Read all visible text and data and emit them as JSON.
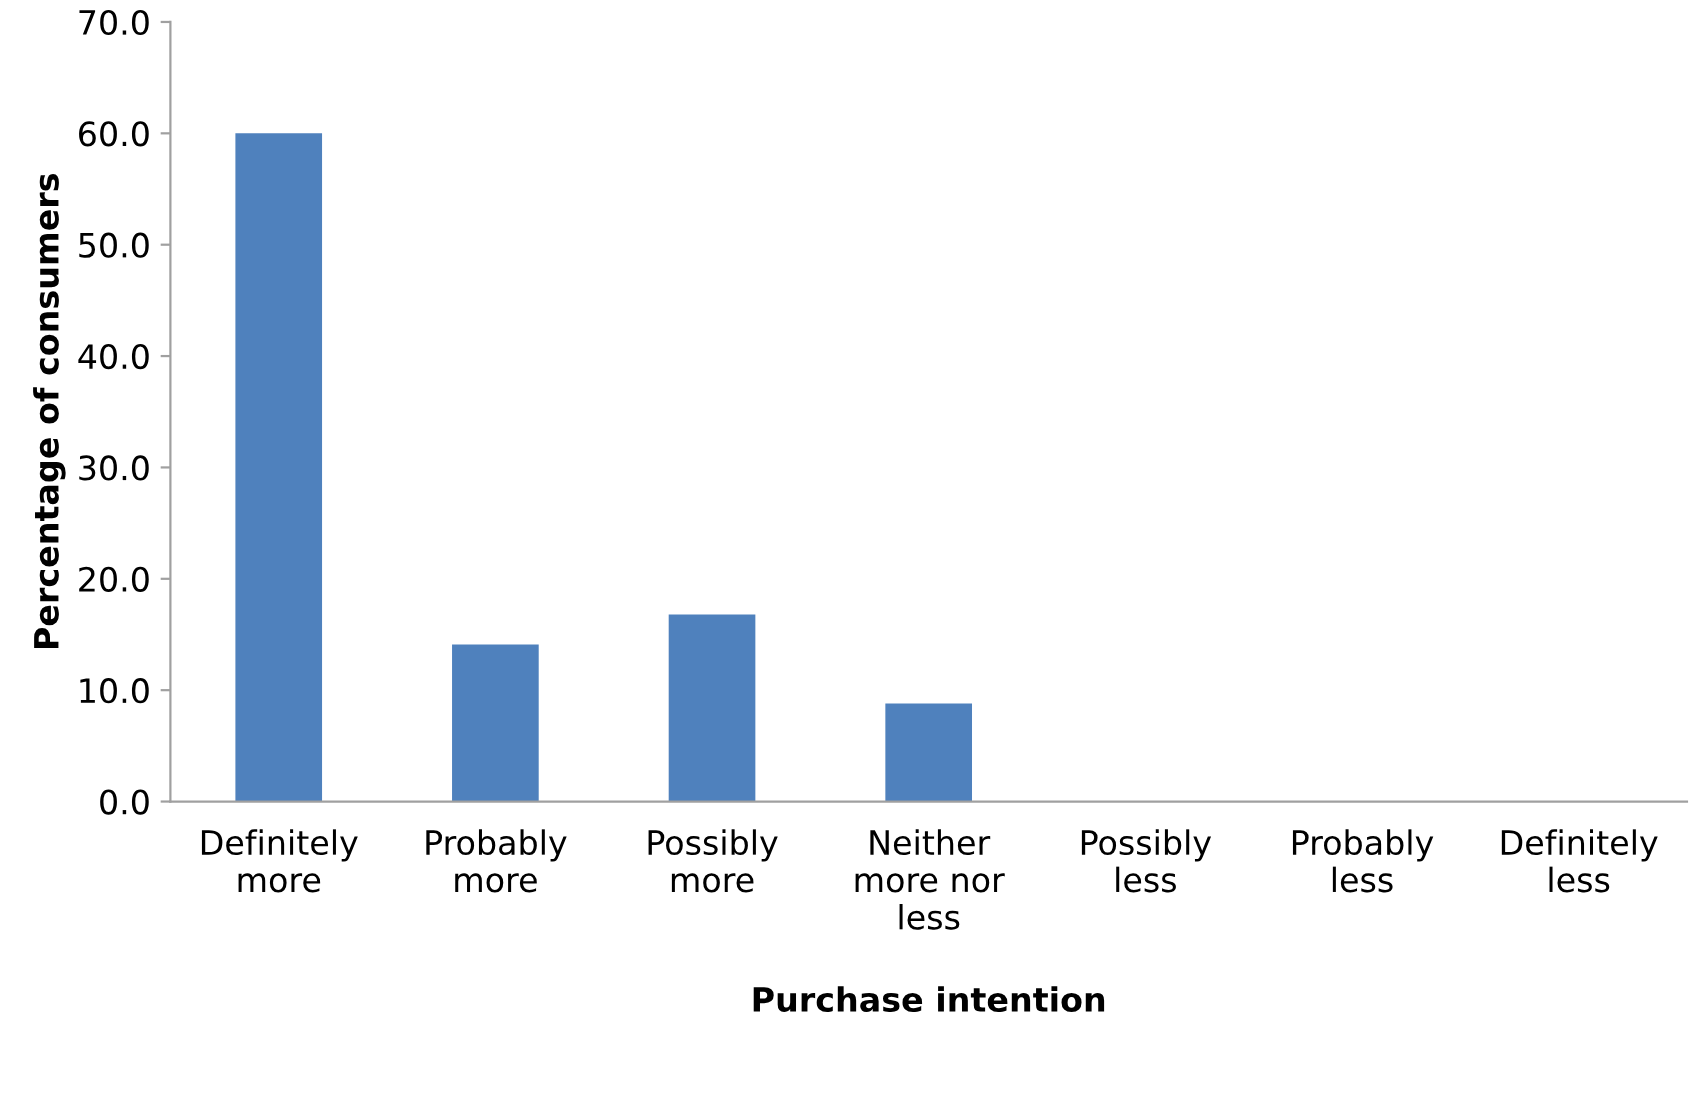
{
  "chart_data": {
    "type": "bar",
    "xlabel": "Purchase intention",
    "ylabel": "Percentage of consumers",
    "categories": [
      "Definitely\nmore",
      "Probably\nmore",
      "Possibly\nmore",
      "Neither\nmore nor\nless",
      "Possibly\nless",
      "Probably\nless",
      "Definitely\nless"
    ],
    "values": [
      60.0,
      14.1,
      16.8,
      8.8,
      0,
      0,
      0
    ],
    "color": "#4f81bd",
    "ylim": [
      0,
      70
    ],
    "yticks": [
      {
        "value": 0,
        "label": "0.0"
      },
      {
        "value": 10,
        "label": "10.0"
      },
      {
        "value": 20,
        "label": "20.0"
      },
      {
        "value": 30,
        "label": "30.0"
      },
      {
        "value": 40,
        "label": "40.0"
      },
      {
        "value": 50,
        "label": "50.0"
      },
      {
        "value": 60,
        "label": "60.0"
      },
      {
        "value": 70,
        "label": "70.0"
      }
    ],
    "grid": false,
    "legend": false
  }
}
